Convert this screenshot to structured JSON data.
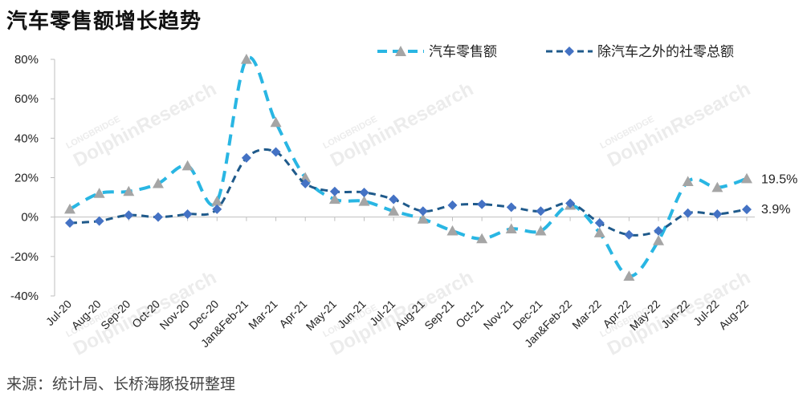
{
  "header": {
    "title": "汽车零售额增长趋势",
    "source": "来源：统计局、长桥海豚投研整理"
  },
  "watermark": {
    "brand": "LONGBRIDGE",
    "name": "DolphinResearch"
  },
  "chart_data": {
    "type": "line",
    "title": "汽车零售额增长趋势",
    "xlabel": "",
    "ylabel": "",
    "ylim": [
      -0.4,
      0.8
    ],
    "yticks": [
      "-40%",
      "-20%",
      "0%",
      "20%",
      "40%",
      "60%",
      "80%"
    ],
    "ytick_values": [
      -0.4,
      -0.2,
      0.0,
      0.2,
      0.4,
      0.6,
      0.8
    ],
    "grid": false,
    "legend_position": "top-right",
    "categories": [
      "Jul-20",
      "Aug-20",
      "Sep-20",
      "Oct-20",
      "Nov-20",
      "Dec-20",
      "Jan&Feb-21",
      "Mar-21",
      "Apr-21",
      "May-21",
      "Jun-21",
      "Jul-21",
      "Aug-21",
      "Sep-21",
      "Oct-21",
      "Nov-21",
      "Dec-21",
      "Jan&Feb-22",
      "Mar-22",
      "Apr-22",
      "May-22",
      "Jun-22",
      "Jul-22",
      "Aug-22"
    ],
    "series": [
      {
        "name": "汽车零售额",
        "color": "#29B6E3",
        "marker": "triangle",
        "marker_color": "#A5A5A5",
        "values": [
          0.04,
          0.12,
          0.13,
          0.17,
          0.26,
          0.08,
          0.8,
          0.48,
          0.2,
          0.09,
          0.08,
          0.03,
          -0.01,
          -0.07,
          -0.11,
          -0.06,
          -0.07,
          0.06,
          -0.08,
          -0.3,
          -0.12,
          0.18,
          0.15,
          0.195
        ]
      },
      {
        "name": "除汽车之外的社零总额",
        "color": "#1F5A8B",
        "marker": "diamond",
        "marker_color": "#4472C4",
        "values": [
          -0.03,
          -0.02,
          0.01,
          0.0,
          0.015,
          0.04,
          0.3,
          0.33,
          0.17,
          0.13,
          0.125,
          0.09,
          0.03,
          0.06,
          0.065,
          0.05,
          0.03,
          0.07,
          -0.03,
          -0.09,
          -0.07,
          0.02,
          0.015,
          0.039
        ]
      }
    ],
    "end_labels": [
      "19.5%",
      "3.9%"
    ]
  }
}
